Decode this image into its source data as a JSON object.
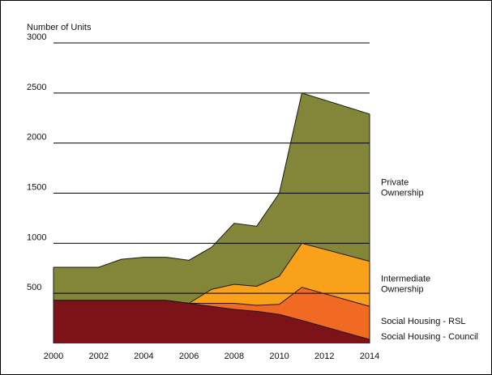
{
  "chart_data": {
    "type": "area",
    "stacked": true,
    "ylabel": "Number of Units",
    "xlim": [
      2000,
      2014
    ],
    "ylim": [
      0,
      3000
    ],
    "x_ticks": [
      2000,
      2002,
      2004,
      2006,
      2008,
      2010,
      2012,
      2014
    ],
    "y_ticks": [
      500,
      1000,
      1500,
      2000,
      2500,
      3000
    ],
    "grid": "horizontal",
    "legend": "right",
    "x": [
      2000,
      2001,
      2002,
      2003,
      2004,
      2005,
      2006,
      2007,
      2008,
      2009,
      2010,
      2011,
      2014
    ],
    "series": [
      {
        "name": "Social Housing - Council",
        "color": "#7b1319",
        "values": [
          430,
          430,
          430,
          430,
          430,
          430,
          400,
          370,
          340,
          320,
          290,
          230,
          40
        ]
      },
      {
        "name": "Social Housing - RSL",
        "color": "#f06a24",
        "values": [
          0,
          0,
          0,
          0,
          0,
          0,
          0,
          30,
          60,
          60,
          100,
          330,
          330
        ]
      },
      {
        "name": "Intermediate Ownership",
        "color": "#f9a11b",
        "values": [
          0,
          0,
          0,
          0,
          0,
          0,
          0,
          140,
          190,
          190,
          280,
          440,
          450
        ]
      },
      {
        "name": "Private Ownership",
        "color": "#838539",
        "values": [
          330,
          330,
          330,
          410,
          430,
          430,
          430,
          420,
          610,
          600,
          830,
          1500,
          1470
        ]
      }
    ]
  }
}
